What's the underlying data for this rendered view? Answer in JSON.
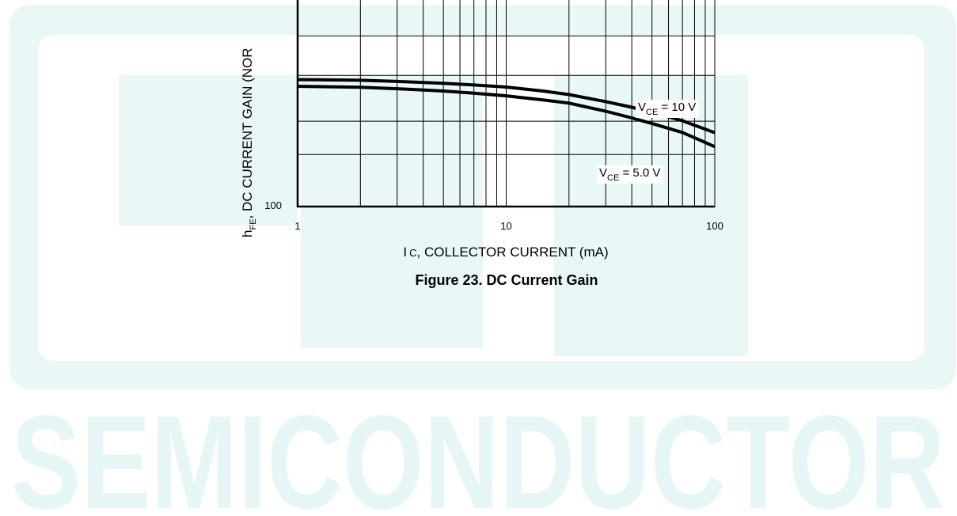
{
  "watermark": {
    "logo_letters": [
      "E",
      "T",
      "C"
    ],
    "text": "SEMICONDUCTOR",
    "color": "#e6f6f6"
  },
  "chart_data": {
    "type": "line",
    "title": "Figure 23. DC Current Gain",
    "xlabel": {
      "prefix": "I",
      "sub": "C",
      "rest": ", COLLECTOR CURRENT (mA)"
    },
    "ylabel": {
      "prefix": "h",
      "sub": "FE",
      "rest": ", DC CURRENT GAIN (NOR"
    },
    "x_scale": "log",
    "xlim": [
      1,
      100
    ],
    "x_ticks": [
      {
        "value": 1,
        "label": "1"
      },
      {
        "value": 10,
        "label": "10"
      },
      {
        "value": 100,
        "label": "100"
      }
    ],
    "y_ticks": [
      {
        "label": "100"
      }
    ],
    "grid": true,
    "series": [
      {
        "name": "VCE = 10 V",
        "label": {
          "prefix": "V",
          "sub": "CE",
          "rest": " = 10 V"
        },
        "x": [
          1,
          2,
          3,
          5,
          7,
          10,
          15,
          20,
          30,
          40,
          50,
          70,
          100
        ],
        "y": [
          0.61,
          0.607,
          0.601,
          0.592,
          0.584,
          0.574,
          0.555,
          0.538,
          0.504,
          0.477,
          0.453,
          0.412,
          0.355
        ]
      },
      {
        "name": "VCE = 5.0 V",
        "label": {
          "prefix": "V",
          "sub": "CE",
          "rest": " = 5.0 V"
        },
        "x": [
          1,
          2,
          3,
          5,
          7,
          10,
          15,
          20,
          30,
          40,
          50,
          70,
          100
        ],
        "y": [
          0.578,
          0.573,
          0.566,
          0.555,
          0.545,
          0.532,
          0.512,
          0.497,
          0.458,
          0.426,
          0.399,
          0.356,
          0.288
        ]
      }
    ],
    "colors": {
      "line": "#000000",
      "grid": "#000000"
    }
  }
}
